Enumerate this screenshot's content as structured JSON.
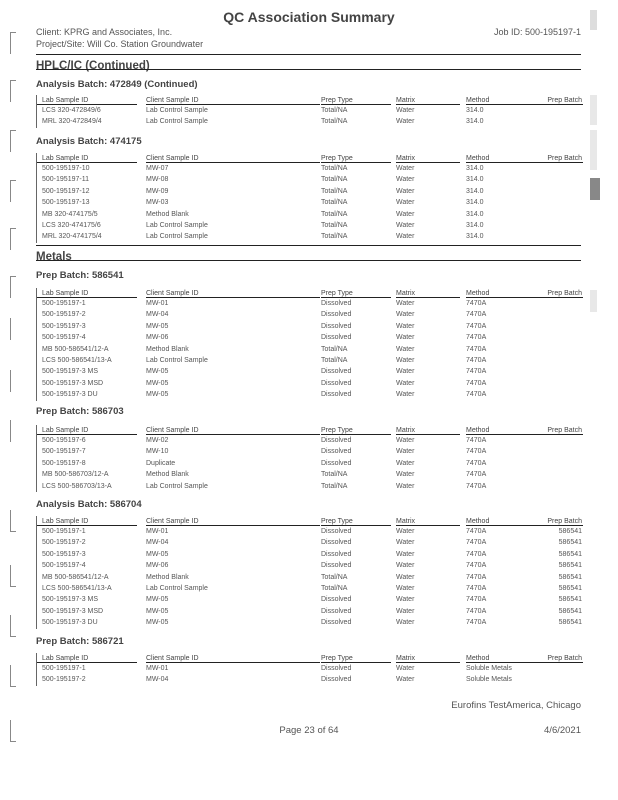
{
  "header": {
    "title": "QC Association Summary",
    "client": "Client: KPRG and Associates, Inc.",
    "project": "Project/Site: Will Co. Station Groundwater",
    "job_id": "Job ID: 500-195197-1"
  },
  "columns": [
    "Lab Sample ID",
    "Client Sample ID",
    "Prep Type",
    "Matrix",
    "Method",
    "Prep Batch"
  ],
  "sections": [
    {
      "name": "HPLC/IC (Continued)",
      "batches": [
        {
          "title": "Analysis Batch: 472849 (Continued)",
          "rows": [
            [
              "LCS 320-472849/6",
              "Lab Control Sample",
              "Total/NA",
              "Water",
              "314.0",
              ""
            ],
            [
              "MRL 320-472849/4",
              "Lab Control Sample",
              "Total/NA",
              "Water",
              "314.0",
              ""
            ]
          ]
        },
        {
          "title": "Analysis Batch: 474175",
          "rows": [
            [
              "500-195197-10",
              "MW-07",
              "Total/NA",
              "Water",
              "314.0",
              ""
            ],
            [
              "500-195197-11",
              "MW-08",
              "Total/NA",
              "Water",
              "314.0",
              ""
            ],
            [
              "500-195197-12",
              "MW-09",
              "Total/NA",
              "Water",
              "314.0",
              ""
            ],
            [
              "500-195197-13",
              "MW-03",
              "Total/NA",
              "Water",
              "314.0",
              ""
            ],
            [
              "MB 320-474175/5",
              "Method Blank",
              "Total/NA",
              "Water",
              "314.0",
              ""
            ],
            [
              "LCS 320-474175/6",
              "Lab Control Sample",
              "Total/NA",
              "Water",
              "314.0",
              ""
            ],
            [
              "MRL 320-474175/4",
              "Lab Control Sample",
              "Total/NA",
              "Water",
              "314.0",
              ""
            ]
          ]
        }
      ]
    },
    {
      "name": "Metals",
      "batches": [
        {
          "title": "Prep Batch: 586541",
          "rows": [
            [
              "500-195197-1",
              "MW-01",
              "Dissolved",
              "Water",
              "7470A",
              ""
            ],
            [
              "500-195197-2",
              "MW-04",
              "Dissolved",
              "Water",
              "7470A",
              ""
            ],
            [
              "500-195197-3",
              "MW-05",
              "Dissolved",
              "Water",
              "7470A",
              ""
            ],
            [
              "500-195197-4",
              "MW-06",
              "Dissolved",
              "Water",
              "7470A",
              ""
            ],
            [
              "MB 500-586541/12-A",
              "Method Blank",
              "Total/NA",
              "Water",
              "7470A",
              ""
            ],
            [
              "LCS 500-586541/13-A",
              "Lab Control Sample",
              "Total/NA",
              "Water",
              "7470A",
              ""
            ],
            [
              "500-195197-3 MS",
              "MW-05",
              "Dissolved",
              "Water",
              "7470A",
              ""
            ],
            [
              "500-195197-3 MSD",
              "MW-05",
              "Dissolved",
              "Water",
              "7470A",
              ""
            ],
            [
              "500-195197-3 DU",
              "MW-05",
              "Dissolved",
              "Water",
              "7470A",
              ""
            ]
          ]
        },
        {
          "title": "Prep Batch: 586703",
          "rows": [
            [
              "500-195197-6",
              "MW-02",
              "Dissolved",
              "Water",
              "7470A",
              ""
            ],
            [
              "500-195197-7",
              "MW-10",
              "Dissolved",
              "Water",
              "7470A",
              ""
            ],
            [
              "500-195197-8",
              "Duplicate",
              "Dissolved",
              "Water",
              "7470A",
              ""
            ],
            [
              "MB 500-586703/12-A",
              "Method Blank",
              "Total/NA",
              "Water",
              "7470A",
              ""
            ],
            [
              "LCS 500-586703/13-A",
              "Lab Control Sample",
              "Total/NA",
              "Water",
              "7470A",
              ""
            ]
          ]
        },
        {
          "title": "Analysis Batch: 586704",
          "rows": [
            [
              "500-195197-1",
              "MW-01",
              "Dissolved",
              "Water",
              "7470A",
              "586541"
            ],
            [
              "500-195197-2",
              "MW-04",
              "Dissolved",
              "Water",
              "7470A",
              "586541"
            ],
            [
              "500-195197-3",
              "MW-05",
              "Dissolved",
              "Water",
              "7470A",
              "586541"
            ],
            [
              "500-195197-4",
              "MW-06",
              "Dissolved",
              "Water",
              "7470A",
              "586541"
            ],
            [
              "MB 500-586541/12-A",
              "Method Blank",
              "Total/NA",
              "Water",
              "7470A",
              "586541"
            ],
            [
              "LCS 500-586541/13-A",
              "Lab Control Sample",
              "Total/NA",
              "Water",
              "7470A",
              "586541"
            ],
            [
              "500-195197-3 MS",
              "MW-05",
              "Dissolved",
              "Water",
              "7470A",
              "586541"
            ],
            [
              "500-195197-3 MSD",
              "MW-05",
              "Dissolved",
              "Water",
              "7470A",
              "586541"
            ],
            [
              "500-195197-3 DU",
              "MW-05",
              "Dissolved",
              "Water",
              "7470A",
              "586541"
            ]
          ]
        },
        {
          "title": "Prep Batch: 586721",
          "rows": [
            [
              "500-195197-1",
              "MW-01",
              "Dissolved",
              "Water",
              "Soluble Metals",
              ""
            ],
            [
              "500-195197-2",
              "MW-04",
              "Dissolved",
              "Water",
              "Soluble Metals",
              ""
            ]
          ]
        }
      ]
    }
  ],
  "footer": {
    "company": "Eurofins TestAmerica, Chicago",
    "page": "Page 23 of 64",
    "date": "4/6/2021"
  }
}
